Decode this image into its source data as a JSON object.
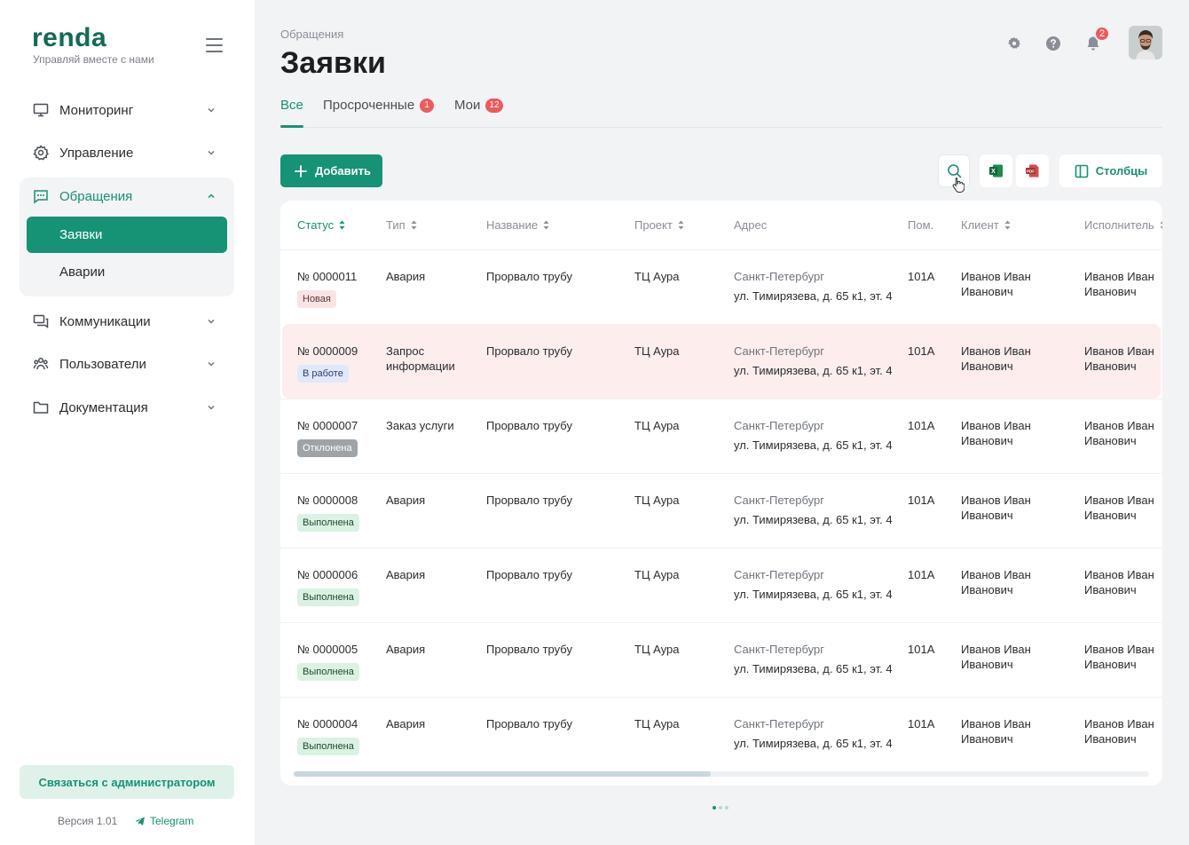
{
  "sidebar": {
    "logo": "renda",
    "tagline": "Управляй вместе с нами",
    "nav": [
      {
        "label": "Мониторинг",
        "icon": "monitor-icon"
      },
      {
        "label": "Управление",
        "icon": "gear-icon"
      },
      {
        "label": "Обращения",
        "icon": "chat-icon",
        "expanded": true
      },
      {
        "label": "Коммуникации",
        "icon": "messages-icon"
      },
      {
        "label": "Пользователи",
        "icon": "users-icon"
      },
      {
        "label": "Документация",
        "icon": "folder-icon"
      }
    ],
    "subnav": [
      {
        "label": "Заявки",
        "active": true
      },
      {
        "label": "Аварии",
        "active": false
      }
    ],
    "contact_label": "Связаться с администратором",
    "version": "Версия 1.01",
    "telegram": "Telegram"
  },
  "header": {
    "breadcrumb": "Обращения",
    "title": "Заявки",
    "notifications_count": "2"
  },
  "tabs": [
    {
      "label": "Все",
      "badge": null,
      "active": true
    },
    {
      "label": "Просроченные",
      "badge": "1"
    },
    {
      "label": "Мои",
      "badge": "12"
    }
  ],
  "toolbar": {
    "add_label": "Добавить",
    "columns_label": "Столбцы",
    "excel_label": "X",
    "pdf_label": "PDF"
  },
  "table": {
    "columns": [
      "Статус",
      "Тип",
      "Название",
      "Проект",
      "Адрес",
      "Пом.",
      "Клиент",
      "Исполнитель"
    ],
    "rows": [
      {
        "number": "№ 0000011",
        "status": "Новая",
        "status_kind": "new",
        "type": "Авария",
        "name": "Прорвало трубу",
        "project": "ТЦ Аура",
        "city": "Санкт-Петербург",
        "street": "ул. Тимирязева, д. 65 к1, эт. 4",
        "room": "101А",
        "client": "Иванов Иван Иванович",
        "executor": "Иванов Иван Иванович",
        "highlight": false
      },
      {
        "number": "№ 0000009",
        "status": "В работе",
        "status_kind": "work",
        "type": "Запрос информации",
        "name": "Прорвало трубу",
        "project": "ТЦ Аура",
        "city": "Санкт-Петербург",
        "street": "ул. Тимирязева, д. 65 к1, эт. 4",
        "room": "101А",
        "client": "Иванов Иван Иванович",
        "executor": "Иванов Иван Иванович",
        "highlight": true
      },
      {
        "number": "№ 0000007",
        "status": "Отклонена",
        "status_kind": "rej",
        "type": "Заказ услуги",
        "name": "Прорвало трубу",
        "project": "ТЦ Аура",
        "city": "Санкт-Петербург",
        "street": "ул. Тимирязева, д. 65 к1, эт. 4",
        "room": "101А",
        "client": "Иванов Иван Иванович",
        "executor": "Иванов Иван Иванович",
        "highlight": false
      },
      {
        "number": "№ 0000008",
        "status": "Выполнена",
        "status_kind": "done",
        "type": "Авария",
        "name": "Прорвало трубу",
        "project": "ТЦ Аура",
        "city": "Санкт-Петербург",
        "street": "ул. Тимирязева, д. 65 к1, эт. 4",
        "room": "101А",
        "client": "Иванов Иван Иванович",
        "executor": "Иванов Иван Иванович",
        "highlight": false
      },
      {
        "number": "№ 0000006",
        "status": "Выполнена",
        "status_kind": "done",
        "type": "Авария",
        "name": "Прорвало трубу",
        "project": "ТЦ Аура",
        "city": "Санкт-Петербург",
        "street": "ул. Тимирязева, д. 65 к1, эт. 4",
        "room": "101А",
        "client": "Иванов Иван Иванович",
        "executor": "Иванов Иван Иванович",
        "highlight": false
      },
      {
        "number": "№ 0000005",
        "status": "Выполнена",
        "status_kind": "done",
        "type": "Авария",
        "name": "Прорвало трубу",
        "project": "ТЦ Аура",
        "city": "Санкт-Петербург",
        "street": "ул. Тимирязева, д. 65 к1, эт. 4",
        "room": "101А",
        "client": "Иванов Иван Иванович",
        "executor": "Иванов Иван Иванович",
        "highlight": false
      },
      {
        "number": "№ 0000004",
        "status": "Выполнена",
        "status_kind": "done",
        "type": "Авария",
        "name": "Прорвало трубу",
        "project": "ТЦ Аура",
        "city": "Санкт-Петербург",
        "street": "ул. Тимирязева, д. 65 к1, эт. 4",
        "room": "101А",
        "client": "Иванов Иван Иванович",
        "executor": "Иванов Иван Иванович",
        "highlight": false
      }
    ]
  },
  "colors": {
    "accent": "#169274",
    "brand": "#0f6b57",
    "badge": "#ef5a5a",
    "row_highlight": "#fdeded"
  }
}
